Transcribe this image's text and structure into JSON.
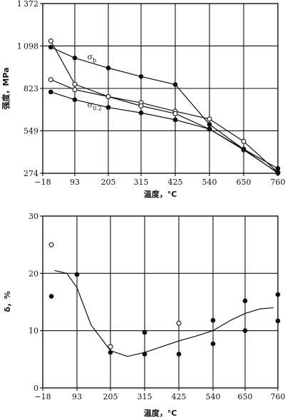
{
  "chart_data": [
    {
      "type": "line",
      "title": "",
      "xlabel": "温度，°C",
      "ylabel": "强度，MPa",
      "x_ticks": [
        -18,
        93,
        205,
        315,
        425,
        540,
        650,
        760
      ],
      "y_ticks": [
        274,
        549,
        823,
        1098,
        1372
      ],
      "xlim": [
        -18,
        760
      ],
      "ylim": [
        274,
        1372
      ],
      "grid": true,
      "annotations": [
        {
          "text": "σ",
          "sub": "b",
          "x": 135,
          "y": 1010
        },
        {
          "text": "σ",
          "sub": "0.2",
          "x": 135,
          "y": 700
        }
      ],
      "series": [
        {
          "name": "σb",
          "marker": "filled",
          "x": [
            10,
            93,
            205,
            315,
            425,
            540,
            650,
            760
          ],
          "y": [
            1090,
            1020,
            955,
            900,
            848,
            590,
            430,
            305
          ]
        },
        {
          "name": "",
          "marker": "open",
          "x": [
            10,
            93,
            205,
            315,
            425,
            540,
            650,
            760
          ],
          "y": [
            1130,
            850,
            770,
            730,
            675,
            625,
            480,
            280
          ]
        },
        {
          "name": "σ0.2",
          "marker": "open",
          "x": [
            10,
            93,
            205,
            315,
            425,
            540,
            650,
            760
          ],
          "y": [
            880,
            815,
            770,
            710,
            660,
            560,
            425,
            278
          ]
        },
        {
          "name": "σ0.2",
          "marker": "filled",
          "x": [
            10,
            93,
            205,
            315,
            425,
            540,
            650,
            760
          ],
          "y": [
            800,
            750,
            700,
            665,
            620,
            560,
            430,
            275
          ]
        }
      ]
    },
    {
      "type": "scatter",
      "title": "",
      "xlabel": "温度，°C",
      "ylabel": "δ，%",
      "x_ticks": [
        -18,
        93,
        205,
        315,
        425,
        540,
        650,
        760
      ],
      "y_ticks": [
        0,
        10,
        20,
        30
      ],
      "xlim": [
        -18,
        760
      ],
      "ylim": [
        0,
        30
      ],
      "grid": true,
      "curve": {
        "x": [
          20,
          60,
          93,
          140,
          205,
          260,
          315,
          370,
          425,
          480,
          540,
          600,
          650,
          700,
          745
        ],
        "y": [
          20.5,
          20.0,
          17.5,
          11.0,
          6.5,
          5.5,
          6.2,
          7.2,
          8.2,
          9.0,
          10.0,
          11.8,
          13.0,
          13.8,
          14.0
        ]
      },
      "points_filled": [
        {
          "x": 10,
          "y": 16
        },
        {
          "x": 93,
          "y": 19.8
        },
        {
          "x": 205,
          "y": 6.2
        },
        {
          "x": 315,
          "y": 9.7
        },
        {
          "x": 315,
          "y": 5.9
        },
        {
          "x": 425,
          "y": 5.9
        },
        {
          "x": 540,
          "y": 11.8
        },
        {
          "x": 540,
          "y": 7.7
        },
        {
          "x": 650,
          "y": 15.2
        },
        {
          "x": 650,
          "y": 10
        },
        {
          "x": 760,
          "y": 16.3
        },
        {
          "x": 760,
          "y": 11.7
        }
      ],
      "points_open": [
        {
          "x": 10,
          "y": 25
        },
        {
          "x": 205,
          "y": 7.2
        },
        {
          "x": 425,
          "y": 11.3
        }
      ]
    }
  ]
}
